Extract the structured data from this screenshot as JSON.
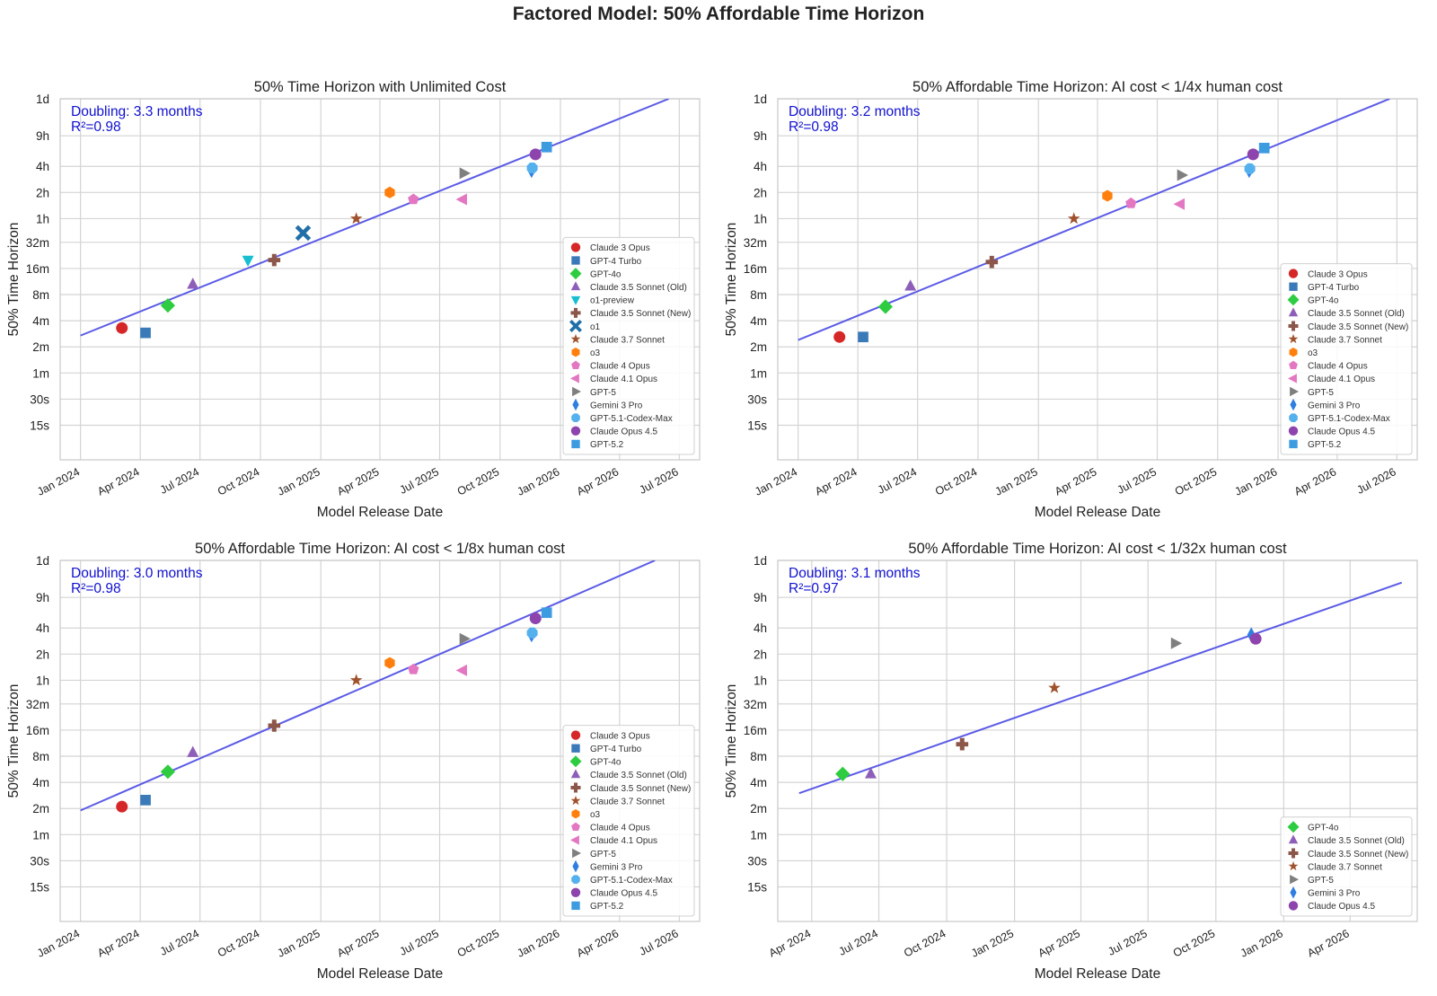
{
  "figure_title": "Factored Model: 50% Affordable Time Horizon",
  "chart_data": [
    {
      "type": "scatter",
      "title": "50% Time Horizon with Unlimited Cost",
      "xlabel": "Model Release Date",
      "ylabel": "50% Time Horizon",
      "y_scale": "log2",
      "y_unit": "minutes",
      "xlim": [
        "2023-12-01",
        "2026-08-01"
      ],
      "ylim_minutes": [
        0.1,
        1440
      ],
      "x_ticks": [
        {
          "date": "2024-01-01",
          "label": "Jan 2024"
        },
        {
          "date": "2024-04-01",
          "label": "Apr 2024"
        },
        {
          "date": "2024-07-01",
          "label": "Jul 2024"
        },
        {
          "date": "2024-10-01",
          "label": "Oct 2024"
        },
        {
          "date": "2025-01-01",
          "label": "Jan 2025"
        },
        {
          "date": "2025-04-01",
          "label": "Apr 2025"
        },
        {
          "date": "2025-07-01",
          "label": "Jul 2025"
        },
        {
          "date": "2025-10-01",
          "label": "Oct 2025"
        },
        {
          "date": "2026-01-01",
          "label": "Jan 2026"
        },
        {
          "date": "2026-04-01",
          "label": "Apr 2026"
        },
        {
          "date": "2026-07-01",
          "label": "Jul 2026"
        }
      ],
      "y_ticks": [
        {
          "value": 0.25,
          "label": "15s"
        },
        {
          "value": 0.5,
          "label": "30s"
        },
        {
          "value": 1,
          "label": "1m"
        },
        {
          "value": 2,
          "label": "2m"
        },
        {
          "value": 4,
          "label": "4m"
        },
        {
          "value": 8,
          "label": "8m"
        },
        {
          "value": 16,
          "label": "16m"
        },
        {
          "value": 32,
          "label": "32m"
        },
        {
          "value": 60,
          "label": "1h"
        },
        {
          "value": 120,
          "label": "2h"
        },
        {
          "value": 240,
          "label": "4h"
        },
        {
          "value": 540,
          "label": "9h"
        },
        {
          "value": 1440,
          "label": "1d"
        }
      ],
      "annotation": {
        "line1": "Doubling: 3.3 months",
        "line2": "R²=0.98"
      },
      "trend": {
        "x": [
          "2024-01-01",
          "2026-06-15"
        ],
        "y": [
          2.7,
          1440
        ]
      },
      "legend_position": "lower-right",
      "points": [
        {
          "name": "Claude 3 Opus",
          "date": "2024-03-04",
          "y": 3.3
        },
        {
          "name": "GPT-4 Turbo",
          "date": "2024-04-09",
          "y": 2.9
        },
        {
          "name": "GPT-4o",
          "date": "2024-05-13",
          "y": 6.0
        },
        {
          "name": "Claude 3.5 Sonnet (Old)",
          "date": "2024-06-20",
          "y": 10.5
        },
        {
          "name": "o1-preview",
          "date": "2024-09-12",
          "y": 20
        },
        {
          "name": "Claude 3.5 Sonnet (New)",
          "date": "2024-10-22",
          "y": 20
        },
        {
          "name": "o1",
          "date": "2024-12-05",
          "y": 41
        },
        {
          "name": "Claude 3.7 Sonnet",
          "date": "2025-02-24",
          "y": 60
        },
        {
          "name": "o3",
          "date": "2025-04-16",
          "y": 120
        },
        {
          "name": "Claude 4 Opus",
          "date": "2025-05-22",
          "y": 100
        },
        {
          "name": "Claude 4.1 Opus",
          "date": "2025-08-05",
          "y": 100
        },
        {
          "name": "GPT-5",
          "date": "2025-08-07",
          "y": 200
        },
        {
          "name": "Gemini 3 Pro",
          "date": "2025-11-18",
          "y": 215
        },
        {
          "name": "GPT-5.1-Codex-Max",
          "date": "2025-11-19",
          "y": 230
        },
        {
          "name": "Claude Opus 4.5",
          "date": "2025-11-24",
          "y": 330
        },
        {
          "name": "GPT-5.2",
          "date": "2025-12-11",
          "y": 400
        }
      ]
    },
    {
      "type": "scatter",
      "title": "50% Affordable Time Horizon: AI cost < 1/4x human cost",
      "xlabel": "Model Release Date",
      "ylabel": "50% Time Horizon",
      "y_scale": "log2",
      "y_unit": "minutes",
      "xlim": [
        "2023-12-01",
        "2026-08-01"
      ],
      "ylim_minutes": [
        0.1,
        1440
      ],
      "x_ticks": [
        {
          "date": "2024-01-01",
          "label": "Jan 2024"
        },
        {
          "date": "2024-04-01",
          "label": "Apr 2024"
        },
        {
          "date": "2024-07-01",
          "label": "Jul 2024"
        },
        {
          "date": "2024-10-01",
          "label": "Oct 2024"
        },
        {
          "date": "2025-01-01",
          "label": "Jan 2025"
        },
        {
          "date": "2025-04-01",
          "label": "Apr 2025"
        },
        {
          "date": "2025-07-01",
          "label": "Jul 2025"
        },
        {
          "date": "2025-10-01",
          "label": "Oct 2025"
        },
        {
          "date": "2026-01-01",
          "label": "Jan 2026"
        },
        {
          "date": "2026-04-01",
          "label": "Apr 2026"
        },
        {
          "date": "2026-07-01",
          "label": "Jul 2026"
        }
      ],
      "y_ticks": [
        {
          "value": 0.25,
          "label": "15s"
        },
        {
          "value": 0.5,
          "label": "30s"
        },
        {
          "value": 1,
          "label": "1m"
        },
        {
          "value": 2,
          "label": "2m"
        },
        {
          "value": 4,
          "label": "4m"
        },
        {
          "value": 8,
          "label": "8m"
        },
        {
          "value": 16,
          "label": "16m"
        },
        {
          "value": 32,
          "label": "32m"
        },
        {
          "value": 60,
          "label": "1h"
        },
        {
          "value": 120,
          "label": "2h"
        },
        {
          "value": 240,
          "label": "4h"
        },
        {
          "value": 540,
          "label": "9h"
        },
        {
          "value": 1440,
          "label": "1d"
        }
      ],
      "annotation": {
        "line1": "Doubling: 3.2 months",
        "line2": "R²=0.98"
      },
      "trend": {
        "x": [
          "2024-01-01",
          "2026-06-20"
        ],
        "y": [
          2.4,
          1440
        ]
      },
      "legend_position": "lower-right",
      "points": [
        {
          "name": "Claude 3 Opus",
          "date": "2024-03-04",
          "y": 2.6
        },
        {
          "name": "GPT-4 Turbo",
          "date": "2024-04-09",
          "y": 2.6
        },
        {
          "name": "GPT-4o",
          "date": "2024-05-13",
          "y": 5.8
        },
        {
          "name": "Claude 3.5 Sonnet (Old)",
          "date": "2024-06-20",
          "y": 10
        },
        {
          "name": "Claude 3.5 Sonnet (New)",
          "date": "2024-10-22",
          "y": 19
        },
        {
          "name": "Claude 3.7 Sonnet",
          "date": "2025-02-24",
          "y": 60
        },
        {
          "name": "o3",
          "date": "2025-04-16",
          "y": 110
        },
        {
          "name": "Claude 4 Opus",
          "date": "2025-05-22",
          "y": 90
        },
        {
          "name": "Claude 4.1 Opus",
          "date": "2025-08-05",
          "y": 88
        },
        {
          "name": "GPT-5",
          "date": "2025-08-07",
          "y": 190
        },
        {
          "name": "Gemini 3 Pro",
          "date": "2025-11-18",
          "y": 215
        },
        {
          "name": "GPT-5.1-Codex-Max",
          "date": "2025-11-19",
          "y": 225
        },
        {
          "name": "Claude Opus 4.5",
          "date": "2025-11-24",
          "y": 330
        },
        {
          "name": "GPT-5.2",
          "date": "2025-12-11",
          "y": 390
        }
      ]
    },
    {
      "type": "scatter",
      "title": "50% Affordable Time Horizon: AI cost < 1/8x human cost",
      "xlabel": "Model Release Date",
      "ylabel": "50% Time Horizon",
      "y_scale": "log2",
      "y_unit": "minutes",
      "xlim": [
        "2023-12-01",
        "2026-08-01"
      ],
      "ylim_minutes": [
        0.1,
        1440
      ],
      "x_ticks": [
        {
          "date": "2024-01-01",
          "label": "Jan 2024"
        },
        {
          "date": "2024-04-01",
          "label": "Apr 2024"
        },
        {
          "date": "2024-07-01",
          "label": "Jul 2024"
        },
        {
          "date": "2024-10-01",
          "label": "Oct 2024"
        },
        {
          "date": "2025-01-01",
          "label": "Jan 2025"
        },
        {
          "date": "2025-04-01",
          "label": "Apr 2025"
        },
        {
          "date": "2025-07-01",
          "label": "Jul 2025"
        },
        {
          "date": "2025-10-01",
          "label": "Oct 2025"
        },
        {
          "date": "2026-01-01",
          "label": "Jan 2026"
        },
        {
          "date": "2026-04-01",
          "label": "Apr 2026"
        },
        {
          "date": "2026-07-01",
          "label": "Jul 2026"
        }
      ],
      "y_ticks": [
        {
          "value": 0.25,
          "label": "15s"
        },
        {
          "value": 0.5,
          "label": "30s"
        },
        {
          "value": 1,
          "label": "1m"
        },
        {
          "value": 2,
          "label": "2m"
        },
        {
          "value": 4,
          "label": "4m"
        },
        {
          "value": 8,
          "label": "8m"
        },
        {
          "value": 16,
          "label": "16m"
        },
        {
          "value": 32,
          "label": "32m"
        },
        {
          "value": 60,
          "label": "1h"
        },
        {
          "value": 120,
          "label": "2h"
        },
        {
          "value": 240,
          "label": "4h"
        },
        {
          "value": 540,
          "label": "9h"
        },
        {
          "value": 1440,
          "label": "1d"
        }
      ],
      "annotation": {
        "line1": "Doubling: 3.0 months",
        "line2": "R²=0.98"
      },
      "trend": {
        "x": [
          "2024-01-01",
          "2026-05-25"
        ],
        "y": [
          1.9,
          1440
        ]
      },
      "legend_position": "lower-right",
      "points": [
        {
          "name": "Claude 3 Opus",
          "date": "2024-03-04",
          "y": 2.1
        },
        {
          "name": "GPT-4 Turbo",
          "date": "2024-04-09",
          "y": 2.5
        },
        {
          "name": "GPT-4o",
          "date": "2024-05-13",
          "y": 5.3
        },
        {
          "name": "Claude 3.5 Sonnet (Old)",
          "date": "2024-06-20",
          "y": 8.8
        },
        {
          "name": "Claude 3.5 Sonnet (New)",
          "date": "2024-10-22",
          "y": 18
        },
        {
          "name": "Claude 3.7 Sonnet",
          "date": "2025-02-24",
          "y": 60
        },
        {
          "name": "o3",
          "date": "2025-04-16",
          "y": 95
        },
        {
          "name": "Claude 4 Opus",
          "date": "2025-05-22",
          "y": 80
        },
        {
          "name": "Claude 4.1 Opus",
          "date": "2025-08-05",
          "y": 78
        },
        {
          "name": "GPT-5",
          "date": "2025-08-07",
          "y": 180
        },
        {
          "name": "Gemini 3 Pro",
          "date": "2025-11-18",
          "y": 200
        },
        {
          "name": "GPT-5.1-Codex-Max",
          "date": "2025-11-19",
          "y": 210
        },
        {
          "name": "Claude Opus 4.5",
          "date": "2025-11-24",
          "y": 310
        },
        {
          "name": "GPT-5.2",
          "date": "2025-12-11",
          "y": 360
        }
      ]
    },
    {
      "type": "scatter",
      "title": "50% Affordable Time Horizon: AI cost < 1/32x human cost",
      "xlabel": "Model Release Date",
      "ylabel": "50% Time Horizon",
      "y_scale": "log2",
      "y_unit": "minutes",
      "xlim": [
        "2024-02-15",
        "2026-07-01"
      ],
      "ylim_minutes": [
        0.1,
        1440
      ],
      "x_ticks": [
        {
          "date": "2024-04-01",
          "label": "Apr 2024"
        },
        {
          "date": "2024-07-01",
          "label": "Jul 2024"
        },
        {
          "date": "2024-10-01",
          "label": "Oct 2024"
        },
        {
          "date": "2025-01-01",
          "label": "Jan 2025"
        },
        {
          "date": "2025-04-01",
          "label": "Apr 2025"
        },
        {
          "date": "2025-07-01",
          "label": "Jul 2025"
        },
        {
          "date": "2025-10-01",
          "label": "Oct 2025"
        },
        {
          "date": "2026-01-01",
          "label": "Jan 2026"
        },
        {
          "date": "2026-04-01",
          "label": "Apr 2026"
        }
      ],
      "y_ticks": [
        {
          "value": 0.25,
          "label": "15s"
        },
        {
          "value": 0.5,
          "label": "30s"
        },
        {
          "value": 1,
          "label": "1m"
        },
        {
          "value": 2,
          "label": "2m"
        },
        {
          "value": 4,
          "label": "4m"
        },
        {
          "value": 8,
          "label": "8m"
        },
        {
          "value": 16,
          "label": "16m"
        },
        {
          "value": 32,
          "label": "32m"
        },
        {
          "value": 60,
          "label": "1h"
        },
        {
          "value": 120,
          "label": "2h"
        },
        {
          "value": 240,
          "label": "4h"
        },
        {
          "value": 540,
          "label": "9h"
        },
        {
          "value": 1440,
          "label": "1d"
        }
      ],
      "annotation": {
        "line1": "Doubling: 3.1 months",
        "line2": "R²=0.97"
      },
      "trend": {
        "x": [
          "2024-03-15",
          "2026-06-10"
        ],
        "y": [
          3.0,
          800
        ]
      },
      "legend_position": "lower-right",
      "points": [
        {
          "name": "GPT-4o",
          "date": "2024-05-13",
          "y": 5.0
        },
        {
          "name": "Claude 3.5 Sonnet (Old)",
          "date": "2024-06-20",
          "y": 5.0
        },
        {
          "name": "Claude 3.5 Sonnet (New)",
          "date": "2024-10-22",
          "y": 11
        },
        {
          "name": "Claude 3.7 Sonnet",
          "date": "2025-02-24",
          "y": 49
        },
        {
          "name": "GPT-5",
          "date": "2025-08-07",
          "y": 160
        },
        {
          "name": "Gemini 3 Pro",
          "date": "2025-11-18",
          "y": 200
        },
        {
          "name": "Claude Opus 4.5",
          "date": "2025-11-24",
          "y": 180
        }
      ]
    }
  ],
  "series_styles": {
    "Claude 3 Opus": {
      "color": "#d62728",
      "icon": "circle"
    },
    "GPT-4 Turbo": {
      "color": "#3b7ab8",
      "icon": "square"
    },
    "GPT-4o": {
      "color": "#2ecc40",
      "icon": "diamond"
    },
    "Claude 3.5 Sonnet (Old)": {
      "color": "#8e5fb8",
      "icon": "triangle-up"
    },
    "o1-preview": {
      "color": "#17becf",
      "icon": "triangle-down"
    },
    "Claude 3.5 Sonnet (New)": {
      "color": "#8c564b",
      "icon": "plus"
    },
    "o1": {
      "color": "#1f6fa8",
      "icon": "x"
    },
    "Claude 3.7 Sonnet": {
      "color": "#a0522d",
      "icon": "star"
    },
    "o3": {
      "color": "#ff7f0e",
      "icon": "hexagon"
    },
    "Claude 4 Opus": {
      "color": "#e377c2",
      "icon": "pentagon"
    },
    "Claude 4.1 Opus": {
      "color": "#e377c2",
      "icon": "triangle-left"
    },
    "GPT-5": {
      "color": "#7f7f7f",
      "icon": "triangle-right"
    },
    "Gemini 3 Pro": {
      "color": "#2f7fe0",
      "icon": "thin-diamond"
    },
    "GPT-5.1-Codex-Max": {
      "color": "#55b0ee",
      "icon": "octagon"
    },
    "Claude Opus 4.5": {
      "color": "#8e44ad",
      "icon": "circle"
    },
    "GPT-5.2": {
      "color": "#3d9be0",
      "icon": "square"
    }
  },
  "colors": {
    "trend_line": "#5b5be6",
    "annotation_text": "#1010d0",
    "grid": "#d4d4d4",
    "axis_frame": "#c8c8c8"
  }
}
